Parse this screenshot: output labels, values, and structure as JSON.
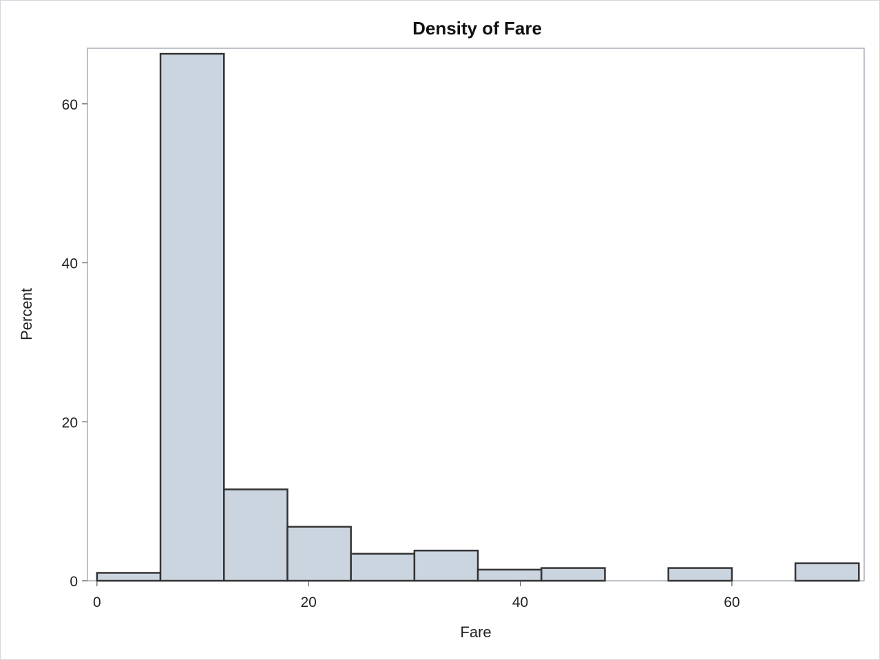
{
  "chart_data": {
    "type": "bar",
    "subtype": "histogram",
    "title": "Density of Fare",
    "xlabel": "Fare",
    "ylabel": "Percent",
    "bin_width": 6,
    "bins": [
      {
        "start": 0,
        "end": 6,
        "value": 1.0
      },
      {
        "start": 6,
        "end": 12,
        "value": 66.3
      },
      {
        "start": 12,
        "end": 18,
        "value": 11.5
      },
      {
        "start": 18,
        "end": 24,
        "value": 6.8
      },
      {
        "start": 24,
        "end": 30,
        "value": 3.4
      },
      {
        "start": 30,
        "end": 36,
        "value": 3.8
      },
      {
        "start": 36,
        "end": 42,
        "value": 1.4
      },
      {
        "start": 42,
        "end": 48,
        "value": 1.6
      },
      {
        "start": 48,
        "end": 54,
        "value": 0
      },
      {
        "start": 54,
        "end": 60,
        "value": 1.6
      },
      {
        "start": 60,
        "end": 66,
        "value": 0
      },
      {
        "start": 66,
        "end": 72,
        "value": 2.2
      }
    ],
    "xlim": [
      -0.9,
      72.5
    ],
    "ylim": [
      0,
      67
    ],
    "xticks": [
      0,
      20,
      40,
      60
    ],
    "yticks": [
      0,
      20,
      40,
      60
    ],
    "grid": false,
    "legend": "none",
    "bar_fill": "#cbd5e0",
    "bar_stroke": "#333333",
    "frame_color": "#a8aeb5"
  }
}
